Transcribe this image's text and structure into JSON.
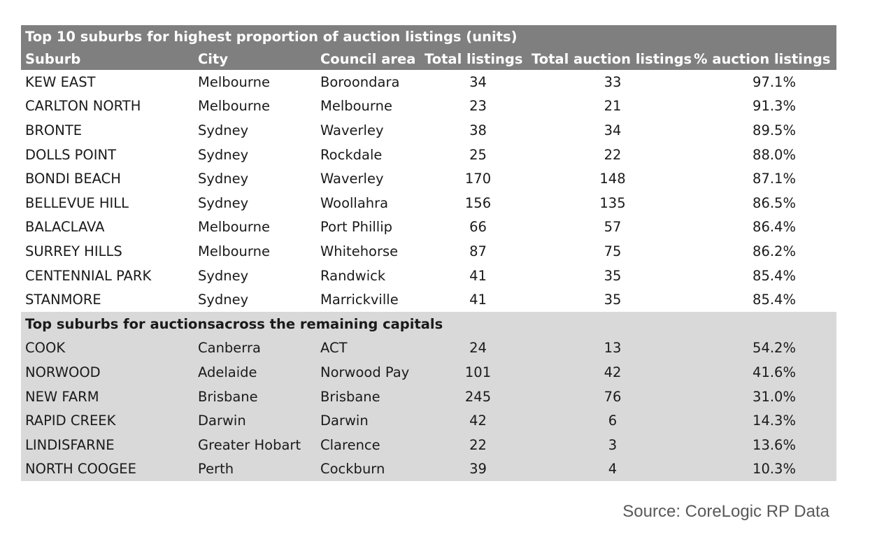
{
  "title": "Top 10 suburbs for highest proportion of auction listings (units)",
  "headers": [
    "Suburb",
    "City",
    "Council area",
    "Total listings",
    "Total auction listings",
    "% auction listings"
  ],
  "top10": [
    [
      "KEW EAST",
      "Melbourne",
      "Boroondara",
      "34",
      "33",
      "97.1%"
    ],
    [
      "CARLTON NORTH",
      "Melbourne",
      "Melbourne",
      "23",
      "21",
      "91.3%"
    ],
    [
      "BRONTE",
      "Sydney",
      "Waverley",
      "38",
      "34",
      "89.5%"
    ],
    [
      "DOLLS POINT",
      "Sydney",
      "Rockdale",
      "25",
      "22",
      "88.0%"
    ],
    [
      "BONDI BEACH",
      "Sydney",
      "Waverley",
      "170",
      "148",
      "87.1%"
    ],
    [
      "BELLEVUE HILL",
      "Sydney",
      "Woollahra",
      "156",
      "135",
      "86.5%"
    ],
    [
      "BALACLAVA",
      "Melbourne",
      "Port Phillip",
      "66",
      "57",
      "86.4%"
    ],
    [
      "SURREY HILLS",
      "Melbourne",
      "Whitehorse",
      "87",
      "75",
      "86.2%"
    ],
    [
      "CENTENNIAL PARK",
      "Sydney",
      "Randwick",
      "41",
      "35",
      "85.4%"
    ],
    [
      "STANMORE",
      "Sydney",
      "Marrickville",
      "41",
      "35",
      "85.4%"
    ]
  ],
  "section2_title": "Top suburbs for auctionsacross the remaining capitals",
  "capitals": [
    [
      "COOK",
      "Canberra",
      "ACT",
      "24",
      "13",
      "54.2%"
    ],
    [
      "NORWOOD",
      "Adelaide",
      "Norwood Pay",
      "101",
      "42",
      "41.6%"
    ],
    [
      "NEW FARM",
      "Brisbane",
      "Brisbane",
      "245",
      "76",
      "31.0%"
    ],
    [
      "RAPID CREEK",
      "Darwin",
      "Darwin",
      "42",
      "6",
      "14.3%"
    ],
    [
      "LINDISFARNE",
      "Greater Hobart",
      "Clarence",
      "22",
      "3",
      "13.6%"
    ],
    [
      "NORTH COOGEE",
      "Perth",
      "Cockburn",
      "39",
      "4",
      "10.3%"
    ]
  ],
  "source": "Source: CoreLogic RP Data",
  "colors": {
    "header_bg": "#7f7f7f",
    "section_bg": "#d9d9d9",
    "source_text": "#595959"
  }
}
